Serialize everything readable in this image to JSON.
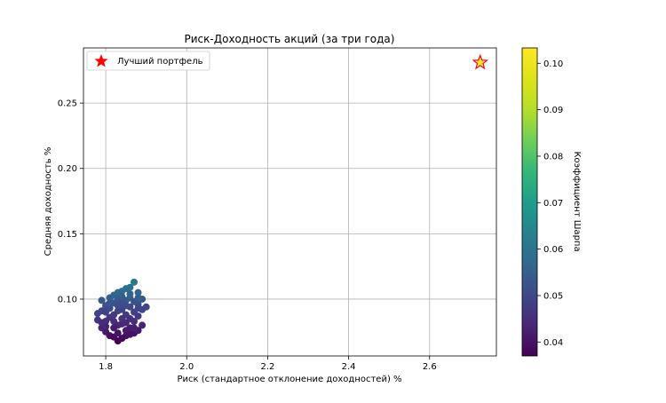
{
  "chart_data": {
    "type": "scatter",
    "title": "Риск-Доходность акций (за три года)",
    "xlabel": "Риск (стандартное отклонение доходностей) %",
    "ylabel": "Средняя доходность %",
    "xlim": [
      1.745,
      2.765
    ],
    "ylim": [
      0.0565,
      0.2922
    ],
    "xticks": [
      1.8,
      2.0,
      2.2,
      2.4,
      2.6
    ],
    "xtick_labels": [
      "1.8",
      "2.0",
      "2.2",
      "2.4",
      "2.6"
    ],
    "yticks": [
      0.1,
      0.15,
      0.2,
      0.25
    ],
    "ytick_labels": [
      "0.10",
      "0.15",
      "0.20",
      "0.25"
    ],
    "grid": true,
    "legend": {
      "position": "top-left",
      "entries": [
        "Лучший портфель"
      ]
    },
    "colorbar": {
      "label": "Коэффициент Шарпа",
      "range": [
        0.037,
        0.1033
      ],
      "ticks": [
        0.04,
        0.05,
        0.06,
        0.07,
        0.08,
        0.09,
        0.1
      ],
      "tick_labels": [
        "0.04",
        "0.05",
        "0.06",
        "0.07",
        "0.08",
        "0.09",
        "0.10"
      ],
      "colormap": "viridis"
    },
    "series": [
      {
        "kind": "portfolios",
        "points": [
          [
            1.79,
            0.099,
            0.0535
          ],
          [
            1.8,
            0.095,
            0.052
          ],
          [
            1.81,
            0.101,
            0.055
          ],
          [
            1.82,
            0.103,
            0.056
          ],
          [
            1.83,
            0.105,
            0.057
          ],
          [
            1.84,
            0.106,
            0.0575
          ],
          [
            1.85,
            0.108,
            0.0585
          ],
          [
            1.86,
            0.109,
            0.059
          ],
          [
            1.87,
            0.113,
            0.061
          ],
          [
            1.88,
            0.105,
            0.0565
          ],
          [
            1.89,
            0.1,
            0.0535
          ],
          [
            1.9,
            0.094,
            0.0495
          ],
          [
            1.78,
            0.089,
            0.049
          ],
          [
            1.78,
            0.084,
            0.0465
          ],
          [
            1.79,
            0.078,
            0.043
          ],
          [
            1.8,
            0.075,
            0.041
          ],
          [
            1.81,
            0.072,
            0.0395
          ],
          [
            1.82,
            0.071,
            0.0385
          ],
          [
            1.83,
            0.068,
            0.037
          ],
          [
            1.84,
            0.07,
            0.038
          ],
          [
            1.85,
            0.072,
            0.039
          ],
          [
            1.86,
            0.073,
            0.0395
          ],
          [
            1.87,
            0.074,
            0.04
          ],
          [
            1.88,
            0.076,
            0.041
          ],
          [
            1.89,
            0.08,
            0.043
          ],
          [
            1.8,
            0.09,
            0.049
          ],
          [
            1.81,
            0.093,
            0.0505
          ],
          [
            1.82,
            0.097,
            0.0525
          ],
          [
            1.83,
            0.1,
            0.054
          ],
          [
            1.84,
            0.102,
            0.055
          ],
          [
            1.85,
            0.099,
            0.0535
          ],
          [
            1.86,
            0.101,
            0.0545
          ],
          [
            1.87,
            0.098,
            0.0525
          ],
          [
            1.88,
            0.096,
            0.0515
          ],
          [
            1.84,
            0.092,
            0.0495
          ],
          [
            1.85,
            0.088,
            0.0475
          ],
          [
            1.86,
            0.085,
            0.046
          ],
          [
            1.82,
            0.083,
            0.045
          ],
          [
            1.83,
            0.08,
            0.0435
          ],
          [
            1.81,
            0.086,
            0.0465
          ],
          [
            1.87,
            0.09,
            0.0485
          ],
          [
            1.88,
            0.087,
            0.047
          ],
          [
            1.86,
            0.078,
            0.042
          ],
          [
            1.85,
            0.076,
            0.041
          ],
          [
            1.83,
            0.091,
            0.049
          ],
          [
            1.84,
            0.097,
            0.052
          ],
          [
            1.79,
            0.091,
            0.0495
          ],
          [
            1.8,
            0.083,
            0.045
          ],
          [
            1.82,
            0.078,
            0.042
          ],
          [
            1.87,
            0.083,
            0.045
          ],
          [
            1.89,
            0.092,
            0.0495
          ],
          [
            1.84,
            0.081,
            0.0438
          ],
          [
            1.81,
            0.097,
            0.0528
          ],
          [
            1.86,
            0.094,
            0.0505
          ],
          [
            1.88,
            0.093,
            0.05
          ],
          [
            1.83,
            0.074,
            0.04
          ],
          [
            1.85,
            0.095,
            0.0512
          ],
          [
            1.8,
            0.079,
            0.0428
          ],
          [
            1.82,
            0.088,
            0.0475
          ],
          [
            1.86,
            0.104,
            0.056
          ],
          [
            1.84,
            0.085,
            0.046
          ],
          [
            1.87,
            0.078,
            0.0422
          ],
          [
            1.88,
            0.101,
            0.0545
          ],
          [
            1.79,
            0.082,
            0.0445
          ],
          [
            1.83,
            0.095,
            0.0512
          ],
          [
            1.85,
            0.082,
            0.0443
          ]
        ]
      },
      {
        "kind": "best",
        "name": "Лучший портфель",
        "points": [
          [
            2.725,
            0.281,
            0.1033
          ]
        ]
      }
    ],
    "colors": {
      "best_star": "#ff0000",
      "grid": "#b0b0b0",
      "axis": "#000000"
    }
  }
}
